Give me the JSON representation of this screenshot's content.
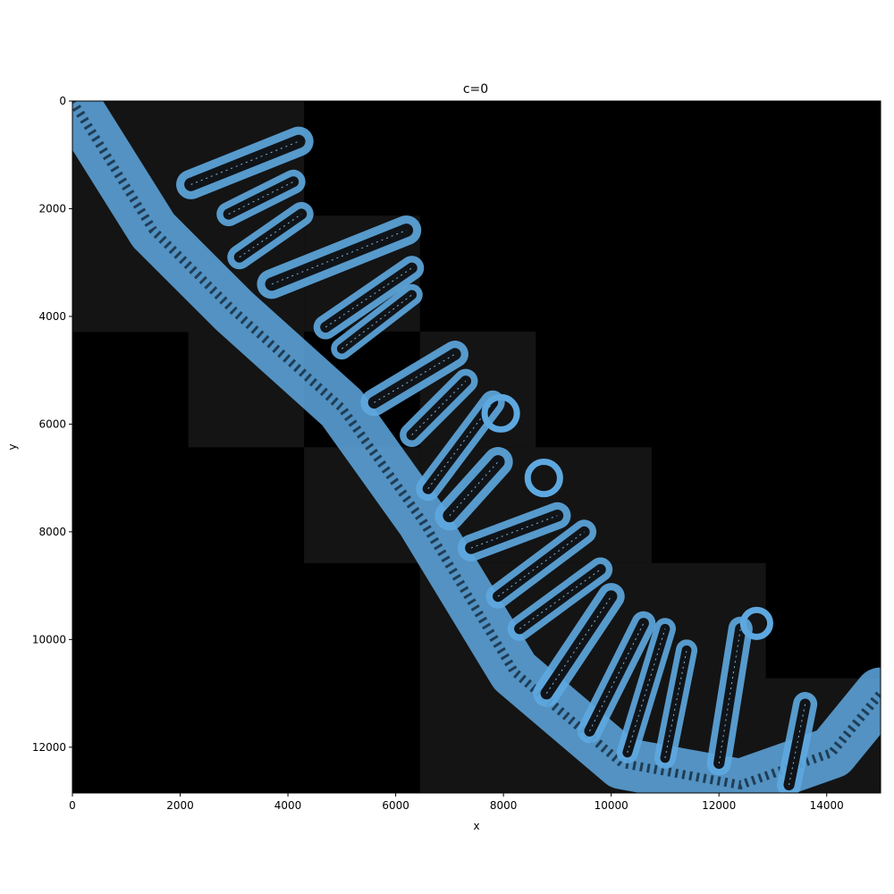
{
  "figure": {
    "title": "c=0",
    "xlabel": "x",
    "ylabel": "y"
  },
  "axes": {
    "xlim": [
      0,
      15000
    ],
    "ylim_top_to_bottom": [
      0,
      12850
    ],
    "xticks": [
      0,
      2000,
      4000,
      6000,
      8000,
      10000,
      12000,
      14000
    ],
    "yticks": [
      0,
      2000,
      4000,
      6000,
      8000,
      10000,
      12000
    ],
    "xtick_labels": [
      "0",
      "2000",
      "4000",
      "6000",
      "8000",
      "10000",
      "12000",
      "14000"
    ],
    "ytick_labels": [
      "0",
      "2000",
      "4000",
      "6000",
      "8000",
      "10000",
      "12000"
    ]
  },
  "image": {
    "background_color": "#000000",
    "tile_color": "#141414",
    "overlay_color": "#5ea8e0",
    "overlay_edge_color": "#a8d8f8",
    "tiles": [
      {
        "x": 0,
        "y": 0,
        "w": 4300,
        "h": 2150
      },
      {
        "x": 0,
        "y": 2150,
        "w": 4300,
        "h": 2140
      },
      {
        "x": 2150,
        "y": 4290,
        "w": 2150,
        "h": 2140
      },
      {
        "x": 4300,
        "y": 2130,
        "w": 2150,
        "h": 2150
      },
      {
        "x": 4300,
        "y": 6430,
        "w": 2150,
        "h": 2150
      },
      {
        "x": 6450,
        "y": 4280,
        "w": 2150,
        "h": 2150
      },
      {
        "x": 6450,
        "y": 6430,
        "w": 4300,
        "h": 2150
      },
      {
        "x": 6450,
        "y": 8580,
        "w": 6420,
        "h": 4270
      },
      {
        "x": 12870,
        "y": 10720,
        "w": 2130,
        "h": 2130
      }
    ],
    "crypts": [
      {
        "x1": 2200,
        "y1": 1550,
        "x2": 4200,
        "y2": 750,
        "w": 550
      },
      {
        "x1": 2900,
        "y1": 2100,
        "x2": 4100,
        "y2": 1500,
        "w": 450
      },
      {
        "x1": 3100,
        "y1": 2900,
        "x2": 4250,
        "y2": 2100,
        "w": 450
      },
      {
        "x1": 3700,
        "y1": 3400,
        "x2": 6200,
        "y2": 2400,
        "w": 550
      },
      {
        "x1": 4700,
        "y1": 4200,
        "x2": 6300,
        "y2": 3100,
        "w": 450
      },
      {
        "x1": 5000,
        "y1": 4600,
        "x2": 6300,
        "y2": 3600,
        "w": 400
      },
      {
        "x1": 5600,
        "y1": 5600,
        "x2": 7100,
        "y2": 4700,
        "w": 500
      },
      {
        "x1": 6300,
        "y1": 6200,
        "x2": 7300,
        "y2": 5200,
        "w": 450
      },
      {
        "x1": 6600,
        "y1": 7200,
        "x2": 7800,
        "y2": 5600,
        "w": 450
      },
      {
        "x1": 7000,
        "y1": 7700,
        "x2": 7900,
        "y2": 6700,
        "w": 550
      },
      {
        "x1": 7400,
        "y1": 8300,
        "x2": 9000,
        "y2": 7700,
        "w": 500
      },
      {
        "x1": 7900,
        "y1": 9200,
        "x2": 9500,
        "y2": 8000,
        "w": 450
      },
      {
        "x1": 8300,
        "y1": 9800,
        "x2": 9800,
        "y2": 8700,
        "w": 450
      },
      {
        "x1": 8800,
        "y1": 11000,
        "x2": 10000,
        "y2": 9200,
        "w": 500
      },
      {
        "x1": 9600,
        "y1": 11700,
        "x2": 10600,
        "y2": 9700,
        "w": 450
      },
      {
        "x1": 10300,
        "y1": 12100,
        "x2": 11000,
        "y2": 9800,
        "w": 400
      },
      {
        "x1": 11000,
        "y1": 12200,
        "x2": 11400,
        "y2": 10200,
        "w": 400
      },
      {
        "x1": 12000,
        "y1": 12300,
        "x2": 12400,
        "y2": 9800,
        "w": 450
      },
      {
        "x1": 13300,
        "y1": 12700,
        "x2": 13600,
        "y2": 11200,
        "w": 450
      }
    ],
    "loops": [
      {
        "cx": 7950,
        "cy": 5800,
        "r": 300
      },
      {
        "cx": 8750,
        "cy": 7000,
        "r": 300
      },
      {
        "cx": 12700,
        "cy": 9700,
        "r": 250
      }
    ]
  }
}
